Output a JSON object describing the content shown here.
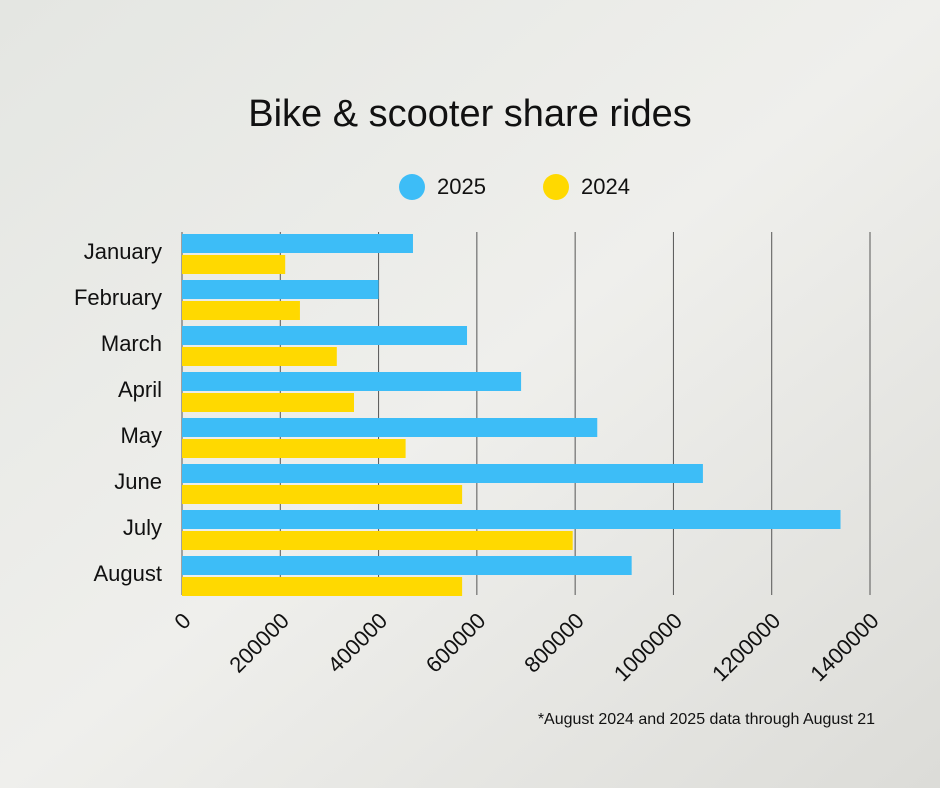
{
  "chart_data": {
    "type": "bar",
    "orientation": "horizontal",
    "title": "Bike & scooter share rides",
    "categories": [
      "January",
      "February",
      "March",
      "April",
      "May",
      "June",
      "July",
      "August"
    ],
    "series": [
      {
        "name": "2025",
        "color": "#3dbdf7",
        "values": [
          470000,
          400000,
          580000,
          690000,
          845000,
          1060000,
          1340000,
          915000
        ]
      },
      {
        "name": "2024",
        "color": "#ffd900",
        "values": [
          210000,
          240000,
          315000,
          350000,
          455000,
          570000,
          795000,
          570000
        ]
      }
    ],
    "xlim": [
      0,
      1400000
    ],
    "xticks": [
      0,
      200000,
      400000,
      600000,
      800000,
      1000000,
      1200000,
      1400000
    ],
    "grid": true,
    "legend": "top",
    "note": "*August 2024 and 2025 data through August 21"
  }
}
